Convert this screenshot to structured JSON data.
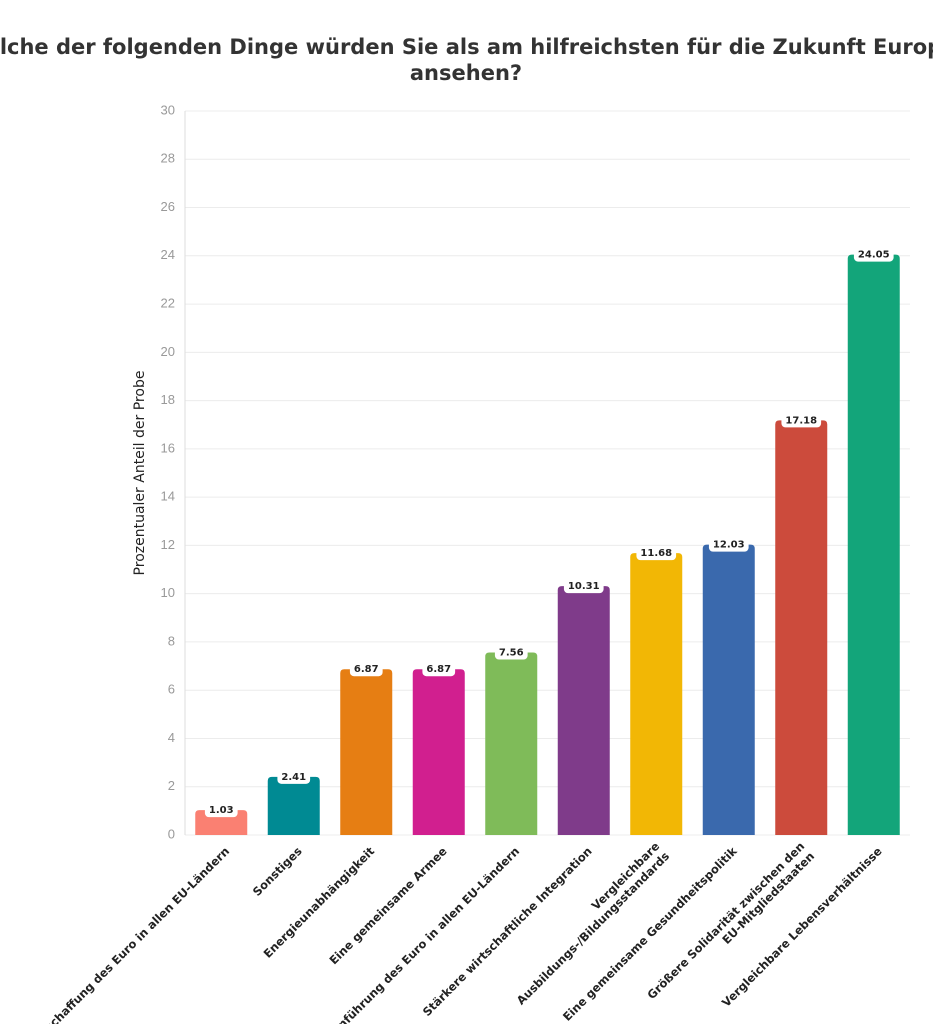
{
  "chart_data": {
    "type": "bar",
    "title": "Welche der folgenden Dinge würden Sie als am hilfreichsten für die Zukunft Europas ansehen?",
    "y_label": "Prozentualer Anteil der Probe",
    "categories": [
      "Abschaffung des Euro in allen EU-Ländern",
      "Sonstiges",
      "Energieunabhängigkeit",
      "Eine gemeinsame Armee",
      "Einführung des Euro in allen EU-Ländern",
      "Stärkere wirtschaftliche Integration",
      "Vergleichbare\nAusbildungs-/Bildungsstandards",
      "Eine gemeinsame Gesundheitspolitik",
      "Größere Solidarität zwischen den\nEU-Mitgliedstaaten",
      "Vergleichbare Lebensverhältnisse"
    ],
    "values": [
      1.03,
      2.41,
      6.87,
      6.87,
      7.56,
      10.31,
      11.68,
      12.03,
      17.18,
      24.05
    ],
    "colors": [
      "#fa8072",
      "#008a93",
      "#e67e13",
      "#d11f8f",
      "#7fbb59",
      "#7f3b8a",
      "#f2b705",
      "#3a69ad",
      "#cc4b3c",
      "#13a57a"
    ],
    "ylim": [
      0,
      30
    ],
    "yticks": [
      0,
      2,
      4,
      6,
      8,
      10,
      12,
      14,
      16,
      18,
      20,
      22,
      24,
      26,
      28,
      30
    ],
    "grid": true
  }
}
